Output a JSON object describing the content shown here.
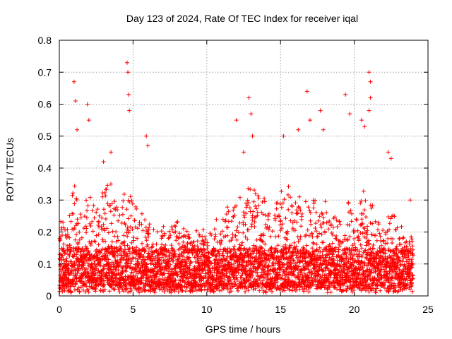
{
  "chart_data": {
    "type": "scatter",
    "title": "Day 123 of 2024, Rate Of TEC Index for receiver iqal",
    "xlabel": "GPS time / hours",
    "ylabel": "ROTI / TECUs",
    "xlim": [
      0,
      25
    ],
    "ylim": [
      0,
      0.8
    ],
    "x_ticks": [
      0,
      5,
      10,
      15,
      20,
      25
    ],
    "x_tick_labels": [
      "0",
      "5",
      "10",
      "15",
      "20",
      "25"
    ],
    "y_ticks": [
      0,
      0.1,
      0.2,
      0.3,
      0.4,
      0.5,
      0.6,
      0.7,
      0.8
    ],
    "y_tick_labels": [
      "0",
      "0.1",
      "0.2",
      "0.3",
      "0.4",
      "0.5",
      "0.6",
      "0.7",
      "0.8"
    ],
    "grid": true,
    "marker": "plus",
    "color": "#ff0000",
    "data_range_hours": [
      0,
      24
    ],
    "baseline_roti": 0.1,
    "peaks": [
      {
        "x": 1.0,
        "y": 0.67
      },
      {
        "x": 1.1,
        "y": 0.61
      },
      {
        "x": 1.2,
        "y": 0.52
      },
      {
        "x": 1.9,
        "y": 0.6
      },
      {
        "x": 2.0,
        "y": 0.55
      },
      {
        "x": 3.0,
        "y": 0.42
      },
      {
        "x": 3.5,
        "y": 0.45
      },
      {
        "x": 4.6,
        "y": 0.73
      },
      {
        "x": 4.65,
        "y": 0.7
      },
      {
        "x": 4.7,
        "y": 0.63
      },
      {
        "x": 4.75,
        "y": 0.58
      },
      {
        "x": 5.9,
        "y": 0.5
      },
      {
        "x": 6.0,
        "y": 0.47
      },
      {
        "x": 12.0,
        "y": 0.55
      },
      {
        "x": 12.5,
        "y": 0.45
      },
      {
        "x": 12.85,
        "y": 0.62
      },
      {
        "x": 13.0,
        "y": 0.57
      },
      {
        "x": 13.1,
        "y": 0.5
      },
      {
        "x": 15.2,
        "y": 0.5
      },
      {
        "x": 16.2,
        "y": 0.52
      },
      {
        "x": 16.8,
        "y": 0.64
      },
      {
        "x": 17.0,
        "y": 0.55
      },
      {
        "x": 17.7,
        "y": 0.58
      },
      {
        "x": 17.9,
        "y": 0.52
      },
      {
        "x": 19.4,
        "y": 0.63
      },
      {
        "x": 19.7,
        "y": 0.57
      },
      {
        "x": 20.5,
        "y": 0.55
      },
      {
        "x": 20.7,
        "y": 0.53
      },
      {
        "x": 21.0,
        "y": 0.7
      },
      {
        "x": 21.1,
        "y": 0.67
      },
      {
        "x": 21.1,
        "y": 0.62
      },
      {
        "x": 21.0,
        "y": 0.58
      },
      {
        "x": 22.3,
        "y": 0.45
      },
      {
        "x": 22.5,
        "y": 0.43
      },
      {
        "x": 23.8,
        "y": 0.3
      }
    ]
  }
}
